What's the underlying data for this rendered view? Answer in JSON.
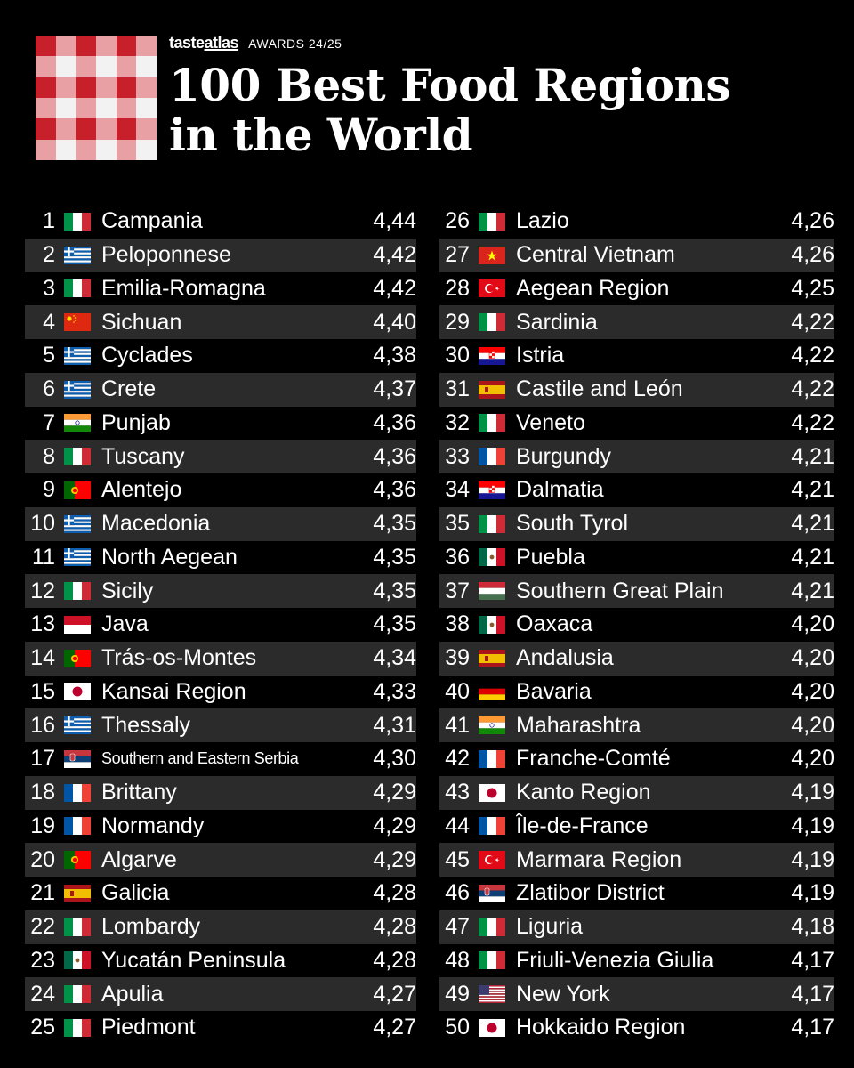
{
  "header": {
    "brand_name_part1": "taste",
    "brand_name_part2": "atlas",
    "brand_sub": "AWARDS 24/25",
    "title_line1": "100 Best Food Regions",
    "title_line2": "in the World"
  },
  "colors": {
    "background": "#000000",
    "row_stripe": "#2b2b2b",
    "logo_red": "#c8202a",
    "logo_white": "#f2f2f2",
    "logo_pink": "#e8a0a4"
  },
  "left_column": [
    {
      "rank": "1",
      "flag": "italy",
      "name": "Campania",
      "rating": "4,44"
    },
    {
      "rank": "2",
      "flag": "greece",
      "name": "Peloponnese",
      "rating": "4,42"
    },
    {
      "rank": "3",
      "flag": "italy",
      "name": "Emilia-Romagna",
      "rating": "4,42"
    },
    {
      "rank": "4",
      "flag": "china",
      "name": "Sichuan",
      "rating": "4,40"
    },
    {
      "rank": "5",
      "flag": "greece",
      "name": "Cyclades",
      "rating": "4,38"
    },
    {
      "rank": "6",
      "flag": "greece",
      "name": "Crete",
      "rating": "4,37"
    },
    {
      "rank": "7",
      "flag": "india",
      "name": "Punjab",
      "rating": "4,36"
    },
    {
      "rank": "8",
      "flag": "italy",
      "name": "Tuscany",
      "rating": "4,36"
    },
    {
      "rank": "9",
      "flag": "portugal",
      "name": "Alentejo",
      "rating": "4,36"
    },
    {
      "rank": "10",
      "flag": "greece",
      "name": "Macedonia",
      "rating": "4,35"
    },
    {
      "rank": "11",
      "flag": "greece",
      "name": "North Aegean",
      "rating": "4,35"
    },
    {
      "rank": "12",
      "flag": "italy",
      "name": "Sicily",
      "rating": "4,35"
    },
    {
      "rank": "13",
      "flag": "indonesia",
      "name": "Java",
      "rating": "4,35"
    },
    {
      "rank": "14",
      "flag": "portugal",
      "name": "Trás-os-Montes",
      "rating": "4,34"
    },
    {
      "rank": "15",
      "flag": "japan",
      "name": "Kansai Region",
      "rating": "4,33"
    },
    {
      "rank": "16",
      "flag": "greece",
      "name": "Thessaly",
      "rating": "4,31"
    },
    {
      "rank": "17",
      "flag": "serbia",
      "name": "Southern and Eastern Serbia",
      "rating": "4,30"
    },
    {
      "rank": "18",
      "flag": "france",
      "name": "Brittany",
      "rating": "4,29"
    },
    {
      "rank": "19",
      "flag": "france",
      "name": "Normandy",
      "rating": "4,29"
    },
    {
      "rank": "20",
      "flag": "portugal",
      "name": "Algarve",
      "rating": "4,29"
    },
    {
      "rank": "21",
      "flag": "spain",
      "name": "Galicia",
      "rating": "4,28"
    },
    {
      "rank": "22",
      "flag": "italy",
      "name": "Lombardy",
      "rating": "4,28"
    },
    {
      "rank": "23",
      "flag": "mexico",
      "name": "Yucatán Peninsula",
      "rating": "4,28"
    },
    {
      "rank": "24",
      "flag": "italy",
      "name": "Apulia",
      "rating": "4,27"
    },
    {
      "rank": "25",
      "flag": "italy",
      "name": "Piedmont",
      "rating": "4,27"
    }
  ],
  "right_column": [
    {
      "rank": "26",
      "flag": "italy",
      "name": "Lazio",
      "rating": "4,26"
    },
    {
      "rank": "27",
      "flag": "vietnam",
      "name": "Central Vietnam",
      "rating": "4,26"
    },
    {
      "rank": "28",
      "flag": "turkey",
      "name": "Aegean Region",
      "rating": "4,25"
    },
    {
      "rank": "29",
      "flag": "italy",
      "name": "Sardinia",
      "rating": "4,22"
    },
    {
      "rank": "30",
      "flag": "croatia",
      "name": "Istria",
      "rating": "4,22"
    },
    {
      "rank": "31",
      "flag": "spain",
      "name": "Castile and León",
      "rating": "4,22"
    },
    {
      "rank": "32",
      "flag": "italy",
      "name": "Veneto",
      "rating": "4,22"
    },
    {
      "rank": "33",
      "flag": "france",
      "name": "Burgundy",
      "rating": "4,21"
    },
    {
      "rank": "34",
      "flag": "croatia",
      "name": "Dalmatia",
      "rating": "4,21"
    },
    {
      "rank": "35",
      "flag": "italy",
      "name": "South Tyrol",
      "rating": "4,21"
    },
    {
      "rank": "36",
      "flag": "mexico",
      "name": "Puebla",
      "rating": "4,21"
    },
    {
      "rank": "37",
      "flag": "hungary",
      "name": "Southern Great Plain",
      "rating": "4,21"
    },
    {
      "rank": "38",
      "flag": "mexico",
      "name": "Oaxaca",
      "rating": "4,20"
    },
    {
      "rank": "39",
      "flag": "spain",
      "name": "Andalusia",
      "rating": "4,20"
    },
    {
      "rank": "40",
      "flag": "germany",
      "name": "Bavaria",
      "rating": "4,20"
    },
    {
      "rank": "41",
      "flag": "india",
      "name": "Maharashtra",
      "rating": "4,20"
    },
    {
      "rank": "42",
      "flag": "france",
      "name": "Franche-Comté",
      "rating": "4,20"
    },
    {
      "rank": "43",
      "flag": "japan",
      "name": "Kanto Region",
      "rating": "4,19"
    },
    {
      "rank": "44",
      "flag": "france",
      "name": "Île-de-France",
      "rating": "4,19"
    },
    {
      "rank": "45",
      "flag": "turkey",
      "name": "Marmara Region",
      "rating": "4,19"
    },
    {
      "rank": "46",
      "flag": "serbia",
      "name": "Zlatibor District",
      "rating": "4,19"
    },
    {
      "rank": "47",
      "flag": "italy",
      "name": "Liguria",
      "rating": "4,18"
    },
    {
      "rank": "48",
      "flag": "italy",
      "name": "Friuli-Venezia Giulia",
      "rating": "4,17"
    },
    {
      "rank": "49",
      "flag": "usa",
      "name": "New York",
      "rating": "4,17"
    },
    {
      "rank": "50",
      "flag": "japan",
      "name": "Hokkaido Region",
      "rating": "4,17"
    }
  ]
}
